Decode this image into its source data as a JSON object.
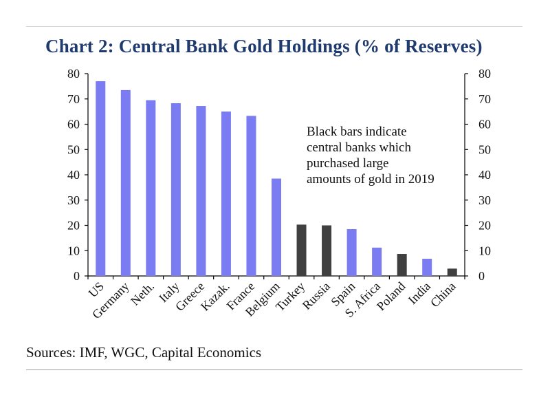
{
  "title": "Chart 2: Central Bank Gold Holdings (% of Reserves)",
  "source": "Sources: IMF, WGC, Capital Economics",
  "annotation": "Black bars indicate\ncentral banks which\npurchased large\namounts of gold in 2019",
  "colors": {
    "normal": "#7b7bf2",
    "purchaser": "#404040",
    "axis": "#000000",
    "title": "#1f3a6e"
  },
  "chart_data": {
    "type": "bar",
    "title": "Chart 2: Central Bank Gold Holdings (% of Reserves)",
    "xlabel": "",
    "ylabel": "",
    "ylim": [
      0,
      80
    ],
    "yticks": [
      0,
      10,
      20,
      30,
      40,
      50,
      60,
      70,
      80
    ],
    "dual_y_axis": true,
    "grid": false,
    "categories": [
      "US",
      "Germany",
      "Neth.",
      "Italy",
      "Greece",
      "Kazak.",
      "France",
      "Belgium",
      "Turkey",
      "Russia",
      "Spain",
      "S. Africa",
      "Poland",
      "India",
      "China"
    ],
    "values": [
      77,
      73.5,
      69.5,
      68.3,
      67.2,
      65,
      63.3,
      38.5,
      20.3,
      20,
      18.5,
      11.2,
      8.7,
      6.8,
      2.9
    ],
    "purchased_large_2019": [
      false,
      false,
      false,
      false,
      false,
      false,
      false,
      false,
      true,
      true,
      false,
      false,
      true,
      false,
      true
    ]
  }
}
